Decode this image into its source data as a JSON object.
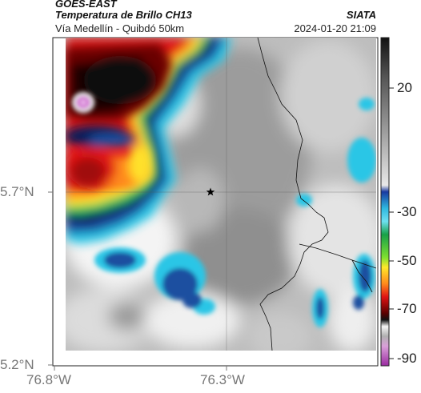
{
  "header": {
    "satellite": "GOES-EAST",
    "product": "Temperatura de Brillo CH13",
    "route": "Vía Medellín - Quibdó 50km",
    "org": "SIATA",
    "datetime": "2024-01-20 21:09"
  },
  "axes": {
    "lat_labels": [
      "5.7°N",
      "5.2°N"
    ],
    "lon_labels": [
      "76.8°W",
      "76.3°W"
    ]
  },
  "colorbar": {
    "tick_labels": [
      "20",
      "-30",
      "-50",
      "-70",
      "-90"
    ],
    "tick_values": [
      20,
      -30,
      -50,
      -70,
      -90
    ],
    "range": [
      -95,
      45
    ]
  },
  "colors": {
    "warm_gray_light": "#f2f2f2",
    "warm_gray_dark": "#8a8a8a",
    "cyan": "#29c6e6",
    "blue": "#1f4fa0",
    "navy": "#0d1a5a",
    "green": "#22c55e",
    "yellow": "#ffe12a",
    "orange": "#ff8a1c",
    "red": "#e01414",
    "darkred": "#6a0000",
    "black": "#111111",
    "magenta": "#cc55cc"
  }
}
